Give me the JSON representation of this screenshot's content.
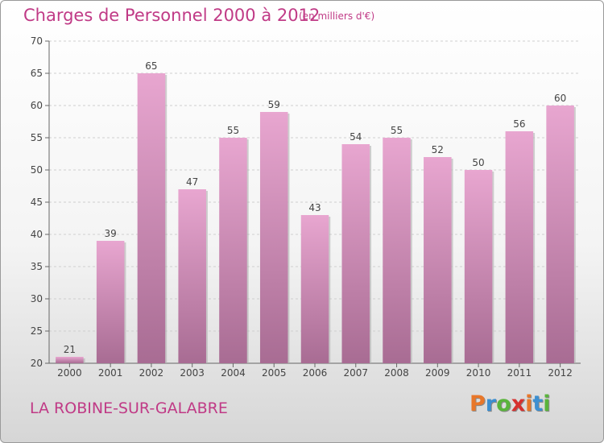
{
  "header": {
    "title": "Charges de Personnel 2000 à 2012",
    "subtitle": "(en milliers d'€)"
  },
  "footer": {
    "city": "LA ROBINE-SUR-GALABRE",
    "logo_letters": [
      "P",
      "r",
      "o",
      "x",
      "i",
      "t",
      "i"
    ],
    "logo_colors": [
      "#e8772a",
      "#3c8fd1",
      "#5ab43c",
      "#d6312f",
      "#e8772a",
      "#3c8fd1",
      "#5ab43c"
    ]
  },
  "chart_data": {
    "type": "bar",
    "categories": [
      "2000",
      "2001",
      "2002",
      "2003",
      "2004",
      "2005",
      "2006",
      "2007",
      "2008",
      "2009",
      "2010",
      "2011",
      "2012"
    ],
    "values": [
      21,
      39,
      65,
      47,
      55,
      59,
      43,
      54,
      55,
      52,
      50,
      56,
      60
    ],
    "ylim": [
      20,
      70
    ],
    "yticks": [
      20,
      25,
      30,
      35,
      40,
      45,
      50,
      55,
      60,
      65,
      70
    ],
    "grid": true,
    "bar_color_top": "#e8a6d0",
    "bar_color_bottom": "#a86c93"
  }
}
